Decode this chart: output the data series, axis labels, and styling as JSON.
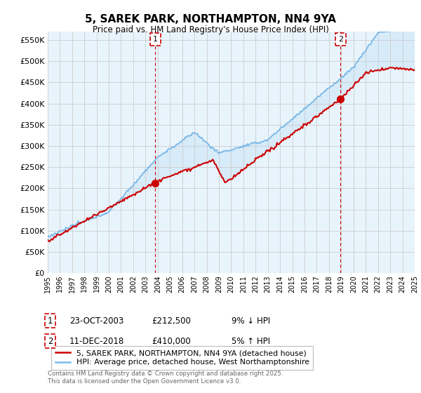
{
  "title": "5, SAREK PARK, NORTHAMPTON, NN4 9YA",
  "subtitle": "Price paid vs. HM Land Registry's House Price Index (HPI)",
  "ytick_values": [
    0,
    50000,
    100000,
    150000,
    200000,
    250000,
    300000,
    350000,
    400000,
    450000,
    500000,
    550000
  ],
  "ylim": [
    0,
    570000
  ],
  "x_start_year": 1995,
  "x_end_year": 2025,
  "sale1_year": 2003.81,
  "sale1_price": 212500,
  "sale1_label": "1",
  "sale2_year": 2018.95,
  "sale2_price": 410000,
  "sale2_label": "2",
  "hpi_color": "#7ab8e8",
  "hpi_fill_color": "#d0e8f8",
  "sale_color": "#cc0000",
  "grid_color": "#cccccc",
  "background_color": "#ffffff",
  "legend_label_sale": "5, SAREK PARK, NORTHAMPTON, NN4 9YA (detached house)",
  "legend_label_hpi": "HPI: Average price, detached house, West Northamptonshire",
  "note1_label": "1",
  "note1_date": "23-OCT-2003",
  "note1_price": "£212,500",
  "note1_pct": "9% ↓ HPI",
  "note2_label": "2",
  "note2_date": "11-DEC-2018",
  "note2_price": "£410,000",
  "note2_pct": "5% ↑ HPI",
  "footer": "Contains HM Land Registry data © Crown copyright and database right 2025.\nThis data is licensed under the Open Government Licence v3.0."
}
